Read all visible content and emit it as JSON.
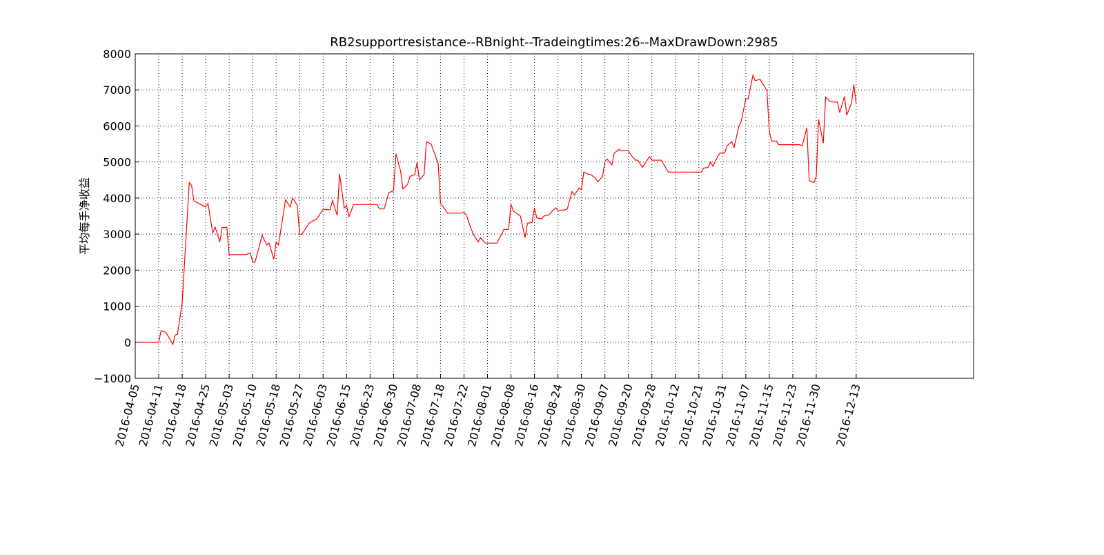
{
  "chart_data": {
    "type": "line",
    "title": "RB2supportresistance--RBnight--Tradeingtimes:26--MaxDrawDown:2985",
    "y_label": "平均每手净收益",
    "color": "#ff0000",
    "grid": true,
    "xlim": [
      0,
      357
    ],
    "ylim": [
      -1000,
      8000
    ],
    "yticks": [
      {
        "value": -1000,
        "label": "−1000"
      },
      0,
      1000,
      2000,
      3000,
      4000,
      5000,
      6000,
      7000,
      8000
    ],
    "xticks": [
      {
        "value": 0,
        "label": "2016-04-05"
      },
      {
        "value": 10,
        "label": "2016-04-11"
      },
      {
        "value": 20,
        "label": "2016-04-18"
      },
      {
        "value": 30,
        "label": "2016-04-25"
      },
      {
        "value": 40,
        "label": "2016-05-03"
      },
      {
        "value": 50,
        "label": "2016-05-10"
      },
      {
        "value": 60,
        "label": "2016-05-18"
      },
      {
        "value": 70,
        "label": "2016-05-27"
      },
      {
        "value": 80,
        "label": "2016-06-03"
      },
      {
        "value": 90,
        "label": "2016-06-15"
      },
      {
        "value": 100,
        "label": "2016-06-23"
      },
      {
        "value": 110,
        "label": "2016-06-30"
      },
      {
        "value": 120,
        "label": "2016-07-08"
      },
      {
        "value": 130,
        "label": "2016-07-18"
      },
      {
        "value": 140,
        "label": "2016-07-22"
      },
      {
        "value": 150,
        "label": "2016-08-01"
      },
      {
        "value": 160,
        "label": "2016-08-08"
      },
      {
        "value": 170,
        "label": "2016-08-16"
      },
      {
        "value": 180,
        "label": "2016-08-24"
      },
      {
        "value": 190,
        "label": "2016-08-30"
      },
      {
        "value": 200,
        "label": "2016-09-07"
      },
      {
        "value": 210,
        "label": "2016-09-20"
      },
      {
        "value": 220,
        "label": "2016-09-28"
      },
      {
        "value": 230,
        "label": "2016-10-12"
      },
      {
        "value": 240,
        "label": "2016-10-21"
      },
      {
        "value": 250,
        "label": "2016-10-31"
      },
      {
        "value": 260,
        "label": "2016-11-07"
      },
      {
        "value": 270,
        "label": "2016-11-15"
      },
      {
        "value": 280,
        "label": "2016-11-23"
      },
      {
        "value": 290,
        "label": "2016-11-30"
      },
      {
        "value": 307,
        "label": "2016-12-13"
      }
    ],
    "x": [
      0,
      10,
      11,
      13,
      16,
      17,
      18,
      20,
      23,
      24,
      25,
      30,
      31,
      33,
      34,
      36,
      37,
      39,
      40,
      47,
      49,
      50,
      51,
      53,
      54,
      56,
      57,
      59,
      60,
      61,
      64,
      66,
      67,
      69,
      70,
      71,
      73,
      74,
      76,
      77,
      80,
      83,
      84,
      86,
      87,
      89,
      90,
      91,
      93,
      103,
      104,
      106,
      108,
      110,
      111,
      113,
      114,
      116,
      117,
      119,
      120,
      121,
      123,
      124,
      126,
      129,
      130,
      131,
      133,
      139,
      140,
      141,
      143,
      144,
      146,
      147,
      149,
      154,
      157,
      159,
      160,
      161,
      163,
      164,
      166,
      167,
      169,
      170,
      171,
      173,
      174,
      176,
      179,
      180,
      183,
      184,
      186,
      187,
      189,
      190,
      191,
      193,
      194,
      196,
      197,
      199,
      200,
      201,
      203,
      204,
      206,
      207,
      210,
      211,
      213,
      214,
      216,
      217,
      219,
      220,
      224,
      227,
      241,
      242,
      244,
      245,
      246,
      248,
      249,
      251,
      252,
      254,
      255,
      257,
      258,
      260,
      261,
      263,
      264,
      266,
      269,
      270,
      271,
      273,
      274,
      283,
      284,
      286,
      287,
      289,
      290,
      291,
      293,
      294,
      296,
      299,
      300,
      302,
      303,
      305,
      306,
      307
    ],
    "values": [
      0,
      0,
      320,
      280,
      -60,
      200,
      220,
      1100,
      4430,
      4350,
      3920,
      3750,
      3850,
      3030,
      3200,
      2780,
      3180,
      3190,
      2430,
      2430,
      2480,
      2220,
      2220,
      2700,
      2970,
      2700,
      2750,
      2300,
      2780,
      2700,
      3950,
      3750,
      4000,
      3800,
      2980,
      3000,
      3200,
      3300,
      3380,
      3400,
      3690,
      3670,
      3930,
      3520,
      4670,
      3720,
      3800,
      3480,
      3820,
      3820,
      3700,
      3700,
      4150,
      4200,
      5230,
      4750,
      4250,
      4380,
      4600,
      4650,
      4990,
      4500,
      4650,
      5560,
      5500,
      4950,
      3850,
      3770,
      3580,
      3580,
      3600,
      3530,
      3150,
      3000,
      2780,
      2900,
      2750,
      2750,
      3130,
      3130,
      3830,
      3640,
      3550,
      3500,
      2900,
      3300,
      3320,
      3720,
      3450,
      3420,
      3500,
      3530,
      3730,
      3660,
      3670,
      3700,
      4180,
      4080,
      4280,
      4230,
      4720,
      4660,
      4650,
      4550,
      4450,
      4600,
      5020,
      5080,
      4920,
      5250,
      5350,
      5310,
      5320,
      5200,
      5050,
      5050,
      4850,
      4950,
      5150,
      5050,
      5050,
      4720,
      4720,
      4830,
      4850,
      5000,
      4880,
      5150,
      5250,
      5250,
      5450,
      5560,
      5400,
      5980,
      6120,
      6750,
      6750,
      7400,
      7250,
      7300,
      6980,
      5850,
      5580,
      5580,
      5480,
      5480,
      5450,
      5950,
      4480,
      4430,
      4600,
      6180,
      5520,
      6800,
      6670,
      6660,
      6370,
      6820,
      6300,
      6630,
      7150,
      6620
    ]
  }
}
